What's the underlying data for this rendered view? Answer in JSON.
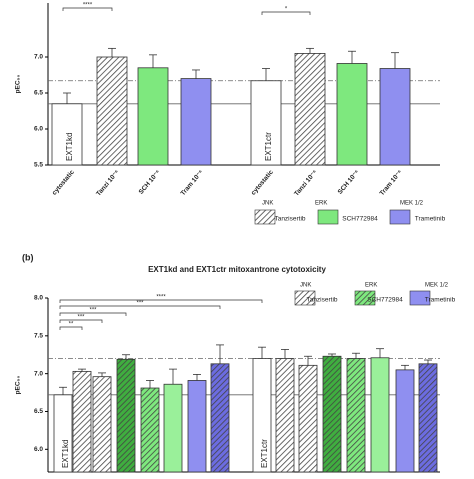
{
  "chart_data": [
    {
      "type": "bar",
      "ylabel": "pEC₅₀",
      "categories": [
        "cytostatic",
        "Tanzi 10⁻⁶",
        "SCH 10⁻⁶",
        "Tram 10⁻⁶",
        "cytostatic",
        "Tanzi 10⁻⁶",
        "SCH 10⁻⁶",
        "Tram 10⁻⁶"
      ],
      "inner_labels": [
        "EXT1kd",
        null,
        null,
        null,
        "EXT1ctr",
        null,
        null,
        null
      ],
      "values": [
        6.35,
        7.0,
        6.85,
        6.7,
        6.67,
        7.05,
        6.91,
        6.84
      ],
      "errors": [
        0.15,
        0.12,
        0.18,
        0.12,
        0.17,
        0.07,
        0.17,
        0.22
      ],
      "colors": [
        "#ffffff",
        "#ffffff",
        "#7ee87e",
        "#8f8ff0",
        "#ffffff",
        "#ffffff",
        "#7ee87e",
        "#8f8ff0"
      ],
      "hatched": [
        false,
        true,
        false,
        false,
        false,
        true,
        false,
        false
      ],
      "hlines": [
        {
          "value": 6.35,
          "style": "solid"
        },
        {
          "value": 6.67,
          "style": "dashed"
        }
      ],
      "significance": [
        "****",
        "*"
      ],
      "ylim": [
        5.5,
        7.75
      ],
      "yticks": [
        5.5,
        {
          "value": 6,
          "label": "6.0"
        },
        6.5,
        {
          "value": 7,
          "label": "7.0"
        }
      ],
      "legend": [
        {
          "group": "JNK",
          "name": "Tanzisertib",
          "color": "#ffffff",
          "hatched": true
        },
        {
          "group": "ERK",
          "name": "SCH772984",
          "color": "#7ee87e",
          "hatched": false
        },
        {
          "group": "MEK 1/2",
          "name": "Trametinib",
          "color": "#8f8ff0",
          "hatched": false
        }
      ]
    },
    {
      "type": "bar",
      "panel": "(b)",
      "title": "EXT1kd and EXT1ctr mitoxantrone cytotoxicity",
      "ylabel": "pEC₅₀",
      "inner_labels": [
        "EXT1kd",
        null,
        null,
        null,
        null,
        null,
        null,
        null,
        "EXT1ctr",
        null,
        null,
        null,
        null,
        null,
        null,
        null
      ],
      "values": [
        6.72,
        7.03,
        6.96,
        7.19,
        6.81,
        6.86,
        6.91,
        7.13,
        7.2,
        7.2,
        7.11,
        7.23,
        7.2,
        7.21,
        7.05,
        7.13
      ],
      "errors": [
        0.1,
        0.03,
        0.05,
        0.06,
        0.1,
        0.2,
        0.08,
        0.25,
        0.15,
        0.12,
        0.12,
        0.03,
        0.07,
        0.12,
        0.06,
        0.05
      ],
      "colors": [
        "#ffffff",
        "#ffffff",
        "#ffffff",
        "#3fae3f",
        "#7ee87e",
        "#9af09a",
        "#8f8ff0",
        "#6c6ce0",
        "#ffffff",
        "#ffffff",
        "#ffffff",
        "#3fae3f",
        "#7ee87e",
        "#9af09a",
        "#8f8ff0",
        "#6c6ce0"
      ],
      "hatched": [
        false,
        true,
        true,
        true,
        true,
        false,
        false,
        true,
        false,
        true,
        true,
        true,
        true,
        false,
        false,
        true
      ],
      "hlines": [
        {
          "value": 6.72,
          "style": "solid"
        },
        {
          "value": 7.2,
          "style": "dashed"
        }
      ],
      "significance": [
        "****",
        "***",
        "***",
        "***",
        "**"
      ],
      "ylim": [
        5.7,
        8.0
      ],
      "yticks": [
        {
          "value": 6,
          "label": "6.0"
        },
        6.5,
        {
          "value": 7,
          "label": "7.0"
        },
        7.5,
        {
          "value": 8,
          "label": "8.0"
        }
      ],
      "legend": [
        {
          "group": "JNK",
          "name": "Tanzisertib",
          "color": "#ffffff",
          "hatched": true
        },
        {
          "group": "ERK",
          "name": "SCH772984",
          "color": "#7ee87e",
          "hatched": true
        },
        {
          "group": "MEK 1/2",
          "name": "Trametinib",
          "color": "#8f8ff0",
          "hatched": false
        }
      ]
    }
  ]
}
